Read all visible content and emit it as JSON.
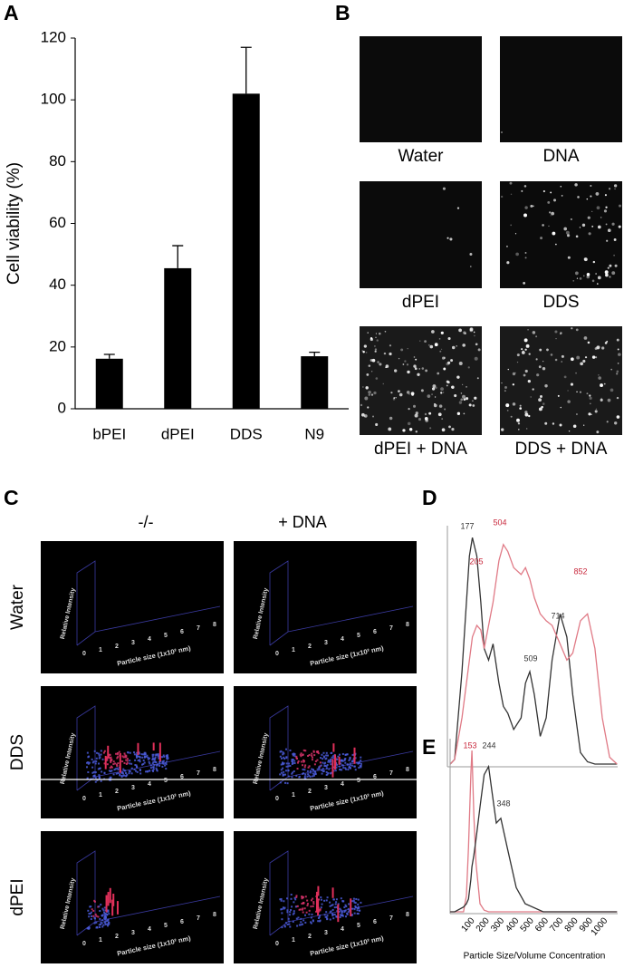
{
  "panel_labels": [
    "A",
    "B",
    "C",
    "D",
    "E"
  ],
  "chart_data": [
    {
      "type": "bar",
      "y_axis_label": "Cell viability (%)",
      "categories": [
        "bPEI",
        "dPEI",
        "DDS",
        "N9"
      ],
      "values": [
        16.2,
        45.5,
        102,
        17
      ],
      "errors": [
        1.4,
        7.3,
        15,
        1.3
      ],
      "color": "#000000",
      "ylim": [
        0,
        120
      ],
      "yticks": [
        0,
        20,
        40,
        60,
        80,
        100,
        120
      ],
      "grid": false
    },
    {
      "type": "line",
      "x": [
        -30,
        0,
        50,
        100,
        120,
        150,
        177,
        200,
        230,
        260,
        300,
        330,
        360,
        400,
        450,
        480,
        509,
        540,
        580,
        620,
        660,
        714,
        760,
        800,
        852,
        900,
        950,
        1000,
        1050,
        1100
      ],
      "xlim": [
        -30,
        1100
      ],
      "ylim": [
        0,
        100
      ],
      "series": [
        {
          "color": "#333333",
          "peaks": [
            177,
            509,
            714
          ],
          "values": [
            0,
            2,
            40,
            90,
            98,
            90,
            70,
            50,
            45,
            52,
            35,
            25,
            22,
            15,
            20,
            35,
            40,
            30,
            12,
            20,
            45,
            65,
            55,
            30,
            5,
            1,
            0,
            0,
            0,
            0
          ]
        },
        {
          "color": "#e07a86",
          "peaks": [
            205,
            504,
            852
          ],
          "values": [
            0,
            2,
            20,
            45,
            55,
            60,
            58,
            50,
            60,
            70,
            88,
            95,
            92,
            85,
            82,
            85,
            80,
            72,
            65,
            62,
            60,
            52,
            45,
            48,
            62,
            65,
            50,
            20,
            3,
            0
          ]
        }
      ]
    },
    {
      "type": "line",
      "x_axis_label": "Particle Size/Volume Concentration",
      "x": [
        -30,
        0,
        60,
        80,
        94,
        110,
        117,
        130,
        145,
        172,
        200,
        230,
        252,
        282,
        313,
        356,
        417,
        478,
        600,
        800,
        1000,
        1100
      ],
      "xlim": [
        -30,
        1100
      ],
      "ylim": [
        0,
        100
      ],
      "xticks": [
        100,
        200,
        300,
        400,
        500,
        600,
        700,
        800,
        900,
        1000
      ],
      "series": [
        {
          "color": "#e07a86",
          "peaks": [
            153
          ],
          "values": [
            0,
            0,
            0,
            10,
            40,
            85,
            100,
            60,
            30,
            5,
            1,
            0,
            0,
            0,
            0,
            0,
            0,
            0,
            0,
            0,
            0,
            0
          ]
        },
        {
          "color": "#333333",
          "peaks": [
            244,
            348
          ],
          "values": [
            0,
            0,
            3,
            5,
            8,
            20,
            28,
            35,
            45,
            65,
            85,
            90,
            75,
            55,
            58,
            40,
            15,
            5,
            0,
            0,
            0,
            0
          ]
        }
      ]
    }
  ],
  "fluorescence": {
    "labels": [
      "Water",
      "DNA",
      "dPEI",
      "DDS",
      "dPEI + DNA",
      "DDS + DNA"
    ]
  },
  "particle_maps": {
    "columns": [
      "-/-",
      "+ DNA"
    ],
    "rows": [
      "Water",
      "DDS",
      "dPEI"
    ],
    "y_axis_label": "Relative Intensity",
    "x_axis_label": "Particle size (1x10² nm)",
    "ticks": [
      0,
      1,
      2,
      3,
      4,
      5,
      6,
      7,
      8
    ]
  }
}
